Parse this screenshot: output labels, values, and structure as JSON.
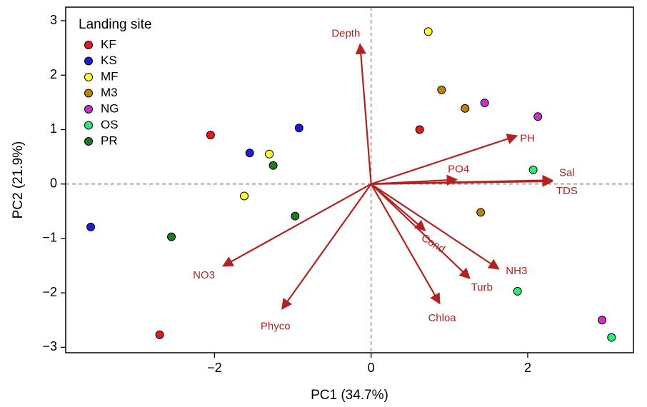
{
  "chart_data": {
    "type": "scatter",
    "subtype": "pca-biplot",
    "xlabel": "PC1 (34.7%)",
    "ylabel": "PC2 (21.9%)",
    "xlim": [
      -3.9,
      3.35
    ],
    "ylim": [
      -3.1,
      3.25
    ],
    "xticks": [
      -2,
      0,
      2
    ],
    "yticks": [
      -3,
      -2,
      -1,
      0,
      1,
      2,
      3
    ],
    "x_tick_labels": [
      "−2",
      "0",
      "2"
    ],
    "y_tick_labels": [
      "−3",
      "−2",
      "−1",
      "0",
      "1",
      "2",
      "3"
    ],
    "grid": false,
    "reference_lines": {
      "x": 0,
      "y": 0,
      "style": "dashed"
    },
    "legend": {
      "title": "Landing site",
      "position": "top-left",
      "entries": [
        {
          "name": "KF",
          "color": "#e41a1c"
        },
        {
          "name": "KS",
          "color": "#1c1cdc"
        },
        {
          "name": "MF",
          "color": "#ffff33"
        },
        {
          "name": "M3",
          "color": "#b8860b"
        },
        {
          "name": "NG",
          "color": "#c832c8"
        },
        {
          "name": "OS",
          "color": "#2ee87a"
        },
        {
          "name": "PR",
          "color": "#1f7a1f"
        }
      ]
    },
    "series": [
      {
        "name": "KF",
        "points": [
          [
            -2.05,
            0.9
          ],
          [
            0.62,
            1.0
          ],
          [
            -2.7,
            -2.77
          ]
        ]
      },
      {
        "name": "KS",
        "points": [
          [
            -0.92,
            1.03
          ],
          [
            -1.55,
            0.57
          ],
          [
            -3.58,
            -0.79
          ]
        ]
      },
      {
        "name": "MF",
        "points": [
          [
            0.73,
            2.8
          ],
          [
            -1.3,
            0.55
          ],
          [
            -1.62,
            -0.22
          ]
        ]
      },
      {
        "name": "M3",
        "points": [
          [
            0.9,
            1.73
          ],
          [
            1.2,
            1.39
          ],
          [
            1.4,
            -0.52
          ]
        ]
      },
      {
        "name": "NG",
        "points": [
          [
            1.45,
            1.49
          ],
          [
            2.13,
            1.24
          ],
          [
            2.95,
            -2.5
          ]
        ]
      },
      {
        "name": "OS",
        "points": [
          [
            2.07,
            0.26
          ],
          [
            1.87,
            -1.97
          ],
          [
            3.07,
            -2.82
          ]
        ]
      },
      {
        "name": "PR",
        "points": [
          [
            -1.25,
            0.34
          ],
          [
            -0.97,
            -0.59
          ],
          [
            -2.55,
            -0.97
          ]
        ]
      }
    ],
    "loadings": {
      "color": "#b22222",
      "vectors": [
        {
          "name": "Depth",
          "x": -0.14,
          "y": 2.55
        },
        {
          "name": "PH",
          "x": 1.85,
          "y": 0.88
        },
        {
          "name": "PO4",
          "x": 1.08,
          "y": 0.08
        },
        {
          "name": "Sal",
          "x": 2.3,
          "y": 0.07
        },
        {
          "name": "TDS",
          "x": 2.3,
          "y": 0.05
        },
        {
          "name": "Cond",
          "x": 0.68,
          "y": -0.84
        },
        {
          "name": "NH3",
          "x": 1.62,
          "y": -1.55
        },
        {
          "name": "Turb",
          "x": 1.25,
          "y": -1.72
        },
        {
          "name": "Chloa",
          "x": 0.87,
          "y": -2.18
        },
        {
          "name": "NO3",
          "x": -1.88,
          "y": -1.5
        },
        {
          "name": "Phyco",
          "x": -1.13,
          "y": -2.28
        }
      ]
    }
  }
}
